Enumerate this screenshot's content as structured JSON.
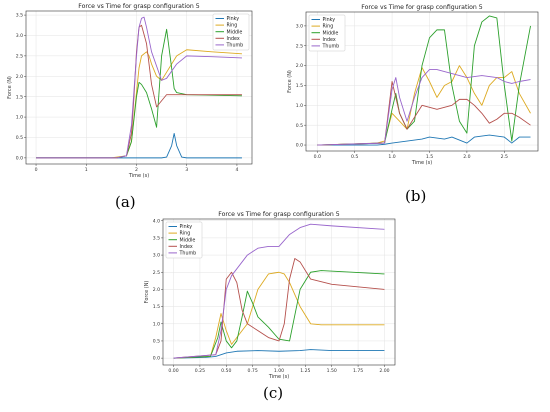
{
  "panel_labels": {
    "a": "(a)",
    "b": "(b)",
    "c": "(c)"
  },
  "colors": {
    "Pinky": "#1f77b4",
    "Ring": "#ddaa22",
    "Middle": "#2ca02c",
    "Index": "#b5504c",
    "Thumb": "#9966cc"
  },
  "chart_data": [
    {
      "type": "line",
      "title": "Force vs Time for grasp configuration 5",
      "xlabel": "Time (s)",
      "ylabel": "Force (N)",
      "xlim": [
        -0.2,
        4.3
      ],
      "ylim": [
        -0.15,
        3.6
      ],
      "xticks": [
        "0",
        "1",
        "2",
        "3",
        "4"
      ],
      "yticks": [
        "0.0",
        "0.5",
        "1.0",
        "1.5",
        "2.0",
        "2.5",
        "3.0",
        "3.5"
      ],
      "legend": "top-right",
      "series": [
        {
          "name": "Pinky",
          "x": [
            0,
            1.5,
            2.0,
            2.5,
            2.6,
            2.7,
            2.75,
            2.8,
            2.9,
            3.0,
            4.1
          ],
          "y": [
            0,
            0,
            0,
            0,
            0.02,
            0.3,
            0.6,
            0.3,
            0.02,
            0,
            0
          ]
        },
        {
          "name": "Ring",
          "x": [
            0,
            1.5,
            1.8,
            1.9,
            2.0,
            2.05,
            2.1,
            2.2,
            2.25,
            2.3,
            2.4,
            2.5,
            2.6,
            2.8,
            3.0,
            3.5,
            4.1
          ],
          "y": [
            0,
            0,
            0.05,
            0.4,
            1.6,
            2.2,
            2.5,
            2.6,
            2.5,
            2.3,
            2.0,
            1.9,
            2.1,
            2.5,
            2.65,
            2.6,
            2.55
          ]
        },
        {
          "name": "Middle",
          "x": [
            0,
            1.6,
            1.8,
            1.9,
            2.0,
            2.05,
            2.1,
            2.2,
            2.3,
            2.4,
            2.5,
            2.6,
            2.7,
            2.75,
            2.8,
            3.0,
            4.1
          ],
          "y": [
            0,
            0,
            0.05,
            0.4,
            1.5,
            1.85,
            1.8,
            1.6,
            1.2,
            0.75,
            2.5,
            3.15,
            2.2,
            1.7,
            1.6,
            1.55,
            1.52
          ]
        },
        {
          "name": "Index",
          "x": [
            0,
            1.6,
            1.8,
            1.9,
            1.95,
            2.0,
            2.05,
            2.1,
            2.2,
            2.3,
            2.4,
            2.5,
            2.6,
            3.0,
            4.1
          ],
          "y": [
            0,
            0,
            0.05,
            0.6,
            1.5,
            2.6,
            3.2,
            3.25,
            2.8,
            1.8,
            1.25,
            1.4,
            1.55,
            1.55,
            1.55
          ]
        },
        {
          "name": "Thumb",
          "x": [
            0,
            1.6,
            1.8,
            1.9,
            2.0,
            2.05,
            2.1,
            2.15,
            2.2,
            2.3,
            2.5,
            2.6,
            2.8,
            3.0,
            3.5,
            4.1
          ],
          "y": [
            0,
            0,
            0.05,
            0.8,
            2.5,
            3.2,
            3.42,
            3.45,
            3.2,
            2.6,
            1.9,
            1.95,
            2.3,
            2.5,
            2.48,
            2.45
          ]
        }
      ]
    },
    {
      "type": "line",
      "title": "Force vs Time for grasp configuration 5",
      "xlabel": "Time (s)",
      "ylabel": "Force (N)",
      "xlim": [
        -0.15,
        2.95
      ],
      "ylim": [
        -0.15,
        3.35
      ],
      "xticks": [
        "0.0",
        "0.5",
        "1.0",
        "1.5",
        "2.0",
        "2.5"
      ],
      "yticks": [
        "0.0",
        "0.5",
        "1.0",
        "1.5",
        "2.0",
        "2.5",
        "3.0"
      ],
      "legend": "top-left",
      "series": [
        {
          "name": "Pinky",
          "x": [
            0,
            0.8,
            0.9,
            1.0,
            1.2,
            1.4,
            1.5,
            1.7,
            1.8,
            2.0,
            2.1,
            2.3,
            2.5,
            2.6,
            2.7,
            2.85
          ],
          "y": [
            0,
            0,
            0.02,
            0.05,
            0.1,
            0.15,
            0.2,
            0.15,
            0.2,
            0.05,
            0.2,
            0.25,
            0.2,
            0.05,
            0.2,
            0.2
          ]
        },
        {
          "name": "Ring",
          "x": [
            0,
            0.8,
            0.9,
            1.0,
            1.1,
            1.2,
            1.3,
            1.4,
            1.5,
            1.6,
            1.7,
            1.8,
            1.9,
            2.0,
            2.1,
            2.2,
            2.3,
            2.4,
            2.5,
            2.6,
            2.7,
            2.85
          ],
          "y": [
            0,
            0.05,
            0.1,
            0.8,
            0.6,
            0.4,
            1.3,
            1.95,
            1.6,
            1.2,
            1.5,
            1.6,
            2.0,
            1.7,
            1.3,
            1.0,
            1.5,
            1.7,
            1.7,
            1.85,
            1.3,
            0.8
          ]
        },
        {
          "name": "Middle",
          "x": [
            0,
            0.9,
            1.0,
            1.05,
            1.1,
            1.2,
            1.3,
            1.4,
            1.5,
            1.6,
            1.7,
            1.8,
            1.9,
            2.0,
            2.1,
            2.2,
            2.3,
            2.4,
            2.5,
            2.6,
            2.7,
            2.85
          ],
          "y": [
            0,
            0.05,
            0.9,
            1.3,
            0.8,
            0.4,
            0.6,
            2.0,
            2.7,
            2.9,
            2.9,
            1.5,
            0.6,
            0.3,
            2.5,
            3.1,
            3.25,
            3.2,
            1.5,
            0.1,
            1.5,
            3.0
          ]
        },
        {
          "name": "Index",
          "x": [
            0,
            0.9,
            1.0,
            1.1,
            1.2,
            1.3,
            1.4,
            1.5,
            1.6,
            1.7,
            1.8,
            1.9,
            2.0,
            2.1,
            2.2,
            2.3,
            2.4,
            2.5,
            2.6,
            2.7,
            2.85
          ],
          "y": [
            0,
            0.05,
            1.6,
            0.8,
            0.4,
            0.7,
            1.0,
            0.95,
            0.9,
            0.95,
            1.0,
            1.15,
            1.15,
            1.0,
            0.8,
            0.55,
            0.65,
            0.8,
            0.8,
            0.7,
            0.5
          ]
        },
        {
          "name": "Thumb",
          "x": [
            0,
            0.9,
            1.0,
            1.05,
            1.1,
            1.2,
            1.3,
            1.4,
            1.5,
            1.6,
            1.7,
            1.8,
            1.9,
            2.0,
            2.2,
            2.4,
            2.5,
            2.6,
            2.7,
            2.85
          ],
          "y": [
            0,
            0.05,
            1.4,
            1.7,
            1.2,
            0.6,
            1.2,
            1.7,
            1.9,
            1.9,
            1.85,
            1.8,
            1.75,
            1.7,
            1.75,
            1.7,
            1.6,
            1.55,
            1.6,
            1.65
          ]
        }
      ]
    },
    {
      "type": "line",
      "title": "Force vs Time for grasp configuration 5",
      "xlabel": "Time (s)",
      "ylabel": "Force (N)",
      "xlim": [
        -0.1,
        2.1
      ],
      "ylim": [
        -0.2,
        4.05
      ],
      "xticks": [
        "0.00",
        "0.25",
        "0.50",
        "0.75",
        "1.00",
        "1.25",
        "1.50",
        "1.75",
        "2.00"
      ],
      "yticks": [
        "0.0",
        "0.5",
        "1.0",
        "1.5",
        "2.0",
        "2.5",
        "3.0",
        "3.5",
        "4.0"
      ],
      "legend": "top-left",
      "series": [
        {
          "name": "Pinky",
          "x": [
            0,
            0.3,
            0.4,
            0.5,
            0.6,
            0.8,
            1.0,
            1.2,
            1.3,
            1.5,
            2.0
          ],
          "y": [
            0,
            0.02,
            0.05,
            0.15,
            0.2,
            0.22,
            0.2,
            0.22,
            0.25,
            0.22,
            0.22
          ]
        },
        {
          "name": "Ring",
          "x": [
            0,
            0.35,
            0.4,
            0.45,
            0.5,
            0.55,
            0.6,
            0.7,
            0.8,
            0.9,
            1.0,
            1.05,
            1.1,
            1.2,
            1.3,
            1.4,
            2.0
          ],
          "y": [
            0,
            0.05,
            0.6,
            1.3,
            0.8,
            0.4,
            0.6,
            1.0,
            2.0,
            2.45,
            2.5,
            2.45,
            2.2,
            1.5,
            1.0,
            0.97,
            0.97
          ]
        },
        {
          "name": "Middle",
          "x": [
            0,
            0.35,
            0.42,
            0.45,
            0.5,
            0.55,
            0.6,
            0.65,
            0.7,
            0.75,
            0.8,
            0.9,
            1.0,
            1.1,
            1.2,
            1.3,
            1.4,
            2.0
          ],
          "y": [
            0,
            0.05,
            0.6,
            1.05,
            0.5,
            0.3,
            0.5,
            1.2,
            1.95,
            1.6,
            1.2,
            0.9,
            0.55,
            0.5,
            2.0,
            2.5,
            2.55,
            2.45
          ]
        },
        {
          "name": "Index",
          "x": [
            0,
            0.4,
            0.45,
            0.5,
            0.55,
            0.6,
            0.65,
            0.7,
            0.8,
            0.9,
            1.0,
            1.05,
            1.1,
            1.15,
            1.2,
            1.3,
            1.5,
            2.0
          ],
          "y": [
            0,
            0.1,
            0.5,
            2.3,
            2.5,
            2.2,
            1.4,
            1.0,
            0.8,
            0.6,
            0.5,
            1.0,
            2.3,
            2.9,
            2.8,
            2.3,
            2.15,
            2.0
          ]
        },
        {
          "name": "Thumb",
          "x": [
            0,
            0.4,
            0.45,
            0.5,
            0.55,
            0.6,
            0.7,
            0.8,
            0.9,
            1.0,
            1.1,
            1.2,
            1.3,
            1.5,
            2.0
          ],
          "y": [
            0,
            0.1,
            0.8,
            2.0,
            2.4,
            2.6,
            3.0,
            3.2,
            3.25,
            3.25,
            3.6,
            3.8,
            3.9,
            3.85,
            3.75
          ]
        }
      ]
    }
  ]
}
